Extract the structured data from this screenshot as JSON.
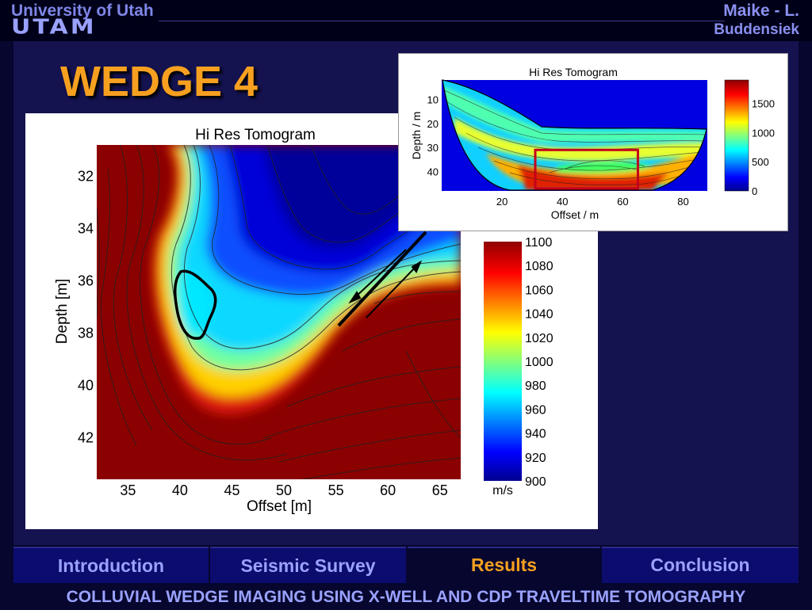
{
  "header": {
    "university": "University of Utah",
    "logo": "UTAM",
    "author_line1": "Maike - L.",
    "author_line2": "Buddensiek"
  },
  "slide": {
    "title": "WEDGE 4"
  },
  "colors": {
    "accent": "#f7a020",
    "nav_text": "#9aa2ff",
    "bg": "#06062e"
  },
  "chart_data": [
    {
      "type": "heatmap",
      "title": "Hi Res Tomogram",
      "xlabel": "Offset [m]",
      "ylabel": "Depth [m]",
      "xlim": [
        32,
        67
      ],
      "ylim": [
        30.8,
        43.6
      ],
      "x_ticks": [
        35,
        40,
        45,
        50,
        55,
        60,
        65
      ],
      "y_ticks": [
        32,
        34,
        36,
        38,
        40,
        42
      ],
      "colorbar": {
        "label": "m/s",
        "min": 900,
        "max": 1100,
        "ticks": [
          1100,
          1080,
          1060,
          1040,
          1020,
          1000,
          980,
          960,
          940,
          920,
          900
        ]
      },
      "interpretation_arrows": 2
    },
    {
      "type": "heatmap",
      "title": "Hi Res Tomogram",
      "xlabel": "Offset / m",
      "ylabel": "Depth / m",
      "xlim": [
        0,
        88
      ],
      "ylim": [
        2,
        48
      ],
      "x_ticks": [
        20,
        40,
        60,
        80
      ],
      "y_ticks": [
        10,
        20,
        30,
        40
      ],
      "colorbar": {
        "min": 0,
        "max": 1900,
        "ticks": [
          1500,
          1000,
          500,
          0
        ]
      },
      "highlight_box": {
        "x": [
          31,
          65
        ],
        "y": [
          31,
          47
        ]
      }
    }
  ],
  "nav": {
    "items": [
      "Introduction",
      "Seismic Survey",
      "Results",
      "Conclusion"
    ],
    "active": "Results"
  },
  "footer": {
    "text": "COLLUVIAL WEDGE IMAGING USING X-WELL AND CDP TRAVELTIME TOMOGRAPHY"
  }
}
